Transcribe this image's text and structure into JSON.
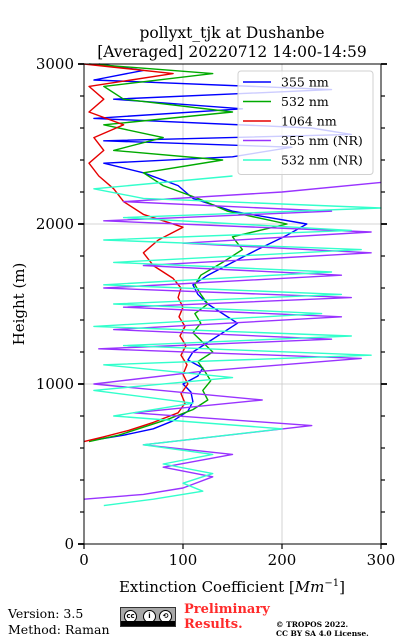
{
  "chart_data": {
    "type": "line",
    "title_line1": "pollyxt_tjk at Dushanbe",
    "title_line2": "[Averaged] 20220712 14:00-14:59",
    "xlabel": "Extinction Coefficient [",
    "xlabel_unit": "Mm",
    "xlabel_exp": "−1",
    "xlabel_close": "]",
    "ylabel": "Height (m)",
    "xlim": [
      0,
      300
    ],
    "ylim": [
      0,
      3000
    ],
    "xticks": [
      "0",
      "100",
      "200",
      "300"
    ],
    "yticks": [
      "0",
      "1000",
      "2000",
      "3000"
    ],
    "grid": true,
    "legend_position": "top-right",
    "series": [
      {
        "name": "355 nm",
        "color": "#0000ff",
        "points": [
          [
            10,
            650
          ],
          [
            40,
            680
          ],
          [
            70,
            720
          ],
          [
            90,
            770
          ],
          [
            105,
            830
          ],
          [
            110,
            890
          ],
          [
            108,
            950
          ],
          [
            100,
            1000
          ],
          [
            115,
            1050
          ],
          [
            120,
            1100
          ],
          [
            105,
            1150
          ],
          [
            110,
            1200
          ],
          [
            125,
            1260
          ],
          [
            140,
            1320
          ],
          [
            155,
            1380
          ],
          [
            140,
            1440
          ],
          [
            125,
            1500
          ],
          [
            115,
            1560
          ],
          [
            110,
            1620
          ],
          [
            125,
            1680
          ],
          [
            150,
            1760
          ],
          [
            175,
            1840
          ],
          [
            205,
            1930
          ],
          [
            225,
            2000
          ],
          [
            150,
            2080
          ],
          [
            110,
            2160
          ],
          [
            95,
            2240
          ],
          [
            60,
            2320
          ],
          [
            20,
            2380
          ],
          [
            150,
            2420
          ],
          [
            210,
            2480
          ],
          [
            20,
            2520
          ],
          [
            270,
            2560
          ],
          [
            230,
            2600
          ],
          [
            10,
            2660
          ],
          [
            160,
            2720
          ],
          [
            30,
            2780
          ],
          [
            250,
            2840
          ],
          [
            10,
            2900
          ],
          [
            60,
            2960
          ],
          [
            15,
            3000
          ]
        ]
      },
      {
        "name": "532 nm",
        "color": "#00aa00",
        "points": [
          [
            5,
            640
          ],
          [
            35,
            680
          ],
          [
            60,
            730
          ],
          [
            85,
            780
          ],
          [
            110,
            840
          ],
          [
            125,
            900
          ],
          [
            120,
            960
          ],
          [
            128,
            1020
          ],
          [
            122,
            1080
          ],
          [
            115,
            1140
          ],
          [
            130,
            1200
          ],
          [
            120,
            1260
          ],
          [
            110,
            1320
          ],
          [
            118,
            1380
          ],
          [
            112,
            1440
          ],
          [
            125,
            1500
          ],
          [
            118,
            1560
          ],
          [
            112,
            1620
          ],
          [
            118,
            1680
          ],
          [
            140,
            1760
          ],
          [
            160,
            1840
          ],
          [
            150,
            1920
          ],
          [
            205,
            2000
          ],
          [
            145,
            2080
          ],
          [
            115,
            2160
          ],
          [
            80,
            2240
          ],
          [
            60,
            2320
          ],
          [
            140,
            2400
          ],
          [
            30,
            2460
          ],
          [
            80,
            2540
          ],
          [
            20,
            2620
          ],
          [
            150,
            2700
          ],
          [
            40,
            2780
          ],
          [
            20,
            2860
          ],
          [
            130,
            2940
          ],
          [
            5,
            3000
          ]
        ]
      },
      {
        "name": "1064 nm",
        "color": "#e60000",
        "points": [
          [
            0,
            640
          ],
          [
            20,
            670
          ],
          [
            45,
            710
          ],
          [
            70,
            760
          ],
          [
            95,
            820
          ],
          [
            102,
            880
          ],
          [
            98,
            940
          ],
          [
            105,
            1000
          ],
          [
            100,
            1060
          ],
          [
            104,
            1120
          ],
          [
            98,
            1180
          ],
          [
            103,
            1240
          ],
          [
            97,
            1300
          ],
          [
            102,
            1360
          ],
          [
            96,
            1420
          ],
          [
            100,
            1480
          ],
          [
            95,
            1540
          ],
          [
            98,
            1600
          ],
          [
            90,
            1660
          ],
          [
            70,
            1740
          ],
          [
            60,
            1820
          ],
          [
            75,
            1900
          ],
          [
            100,
            1980
          ],
          [
            60,
            2060
          ],
          [
            40,
            2140
          ],
          [
            30,
            2220
          ],
          [
            15,
            2300
          ],
          [
            5,
            2380
          ],
          [
            20,
            2460
          ],
          [
            10,
            2540
          ],
          [
            40,
            2620
          ],
          [
            5,
            2700
          ],
          [
            20,
            2780
          ],
          [
            5,
            2860
          ],
          [
            90,
            2940
          ],
          [
            0,
            3000
          ]
        ]
      },
      {
        "name": "355 nm (NR)",
        "color": "#9933ff",
        "points": [
          [
            0,
            280
          ],
          [
            60,
            310
          ],
          [
            100,
            350
          ],
          [
            130,
            420
          ],
          [
            80,
            480
          ],
          [
            150,
            560
          ],
          [
            60,
            620
          ],
          [
            230,
            740
          ],
          [
            50,
            820
          ],
          [
            180,
            900
          ],
          [
            10,
            1000
          ],
          [
            120,
            1080
          ],
          [
            280,
            1160
          ],
          [
            15,
            1220
          ],
          [
            250,
            1280
          ],
          [
            30,
            1340
          ],
          [
            260,
            1420
          ],
          [
            40,
            1480
          ],
          [
            270,
            1540
          ],
          [
            20,
            1600
          ],
          [
            260,
            1680
          ],
          [
            60,
            1740
          ],
          [
            290,
            1820
          ],
          [
            100,
            1880
          ],
          [
            290,
            1950
          ],
          [
            20,
            2020
          ],
          [
            250,
            2080
          ],
          [
            40,
            2140
          ],
          [
            200,
            2200
          ],
          [
            300,
            2260
          ]
        ]
      },
      {
        "name": "532 nm (NR)",
        "color": "#33ffcc",
        "points": [
          [
            20,
            240
          ],
          [
            70,
            280
          ],
          [
            120,
            330
          ],
          [
            100,
            380
          ],
          [
            130,
            440
          ],
          [
            80,
            500
          ],
          [
            130,
            560
          ],
          [
            60,
            620
          ],
          [
            200,
            720
          ],
          [
            30,
            800
          ],
          [
            110,
            880
          ],
          [
            10,
            960
          ],
          [
            150,
            1040
          ],
          [
            20,
            1120
          ],
          [
            290,
            1180
          ],
          [
            40,
            1240
          ],
          [
            270,
            1300
          ],
          [
            10,
            1360
          ],
          [
            240,
            1440
          ],
          [
            30,
            1500
          ],
          [
            260,
            1560
          ],
          [
            20,
            1620
          ],
          [
            250,
            1700
          ],
          [
            30,
            1760
          ],
          [
            280,
            1840
          ],
          [
            20,
            1900
          ],
          [
            270,
            1960
          ],
          [
            40,
            2040
          ],
          [
            300,
            2100
          ],
          [
            60,
            2160
          ],
          [
            10,
            2220
          ],
          [
            150,
            2300
          ]
        ]
      }
    ]
  },
  "footer": {
    "version": "Version: 3.5",
    "method": "Method: Raman",
    "preliminary_line1": "Preliminary",
    "preliminary_line2": "Results.",
    "copyright1": "© TROPOS 2022.",
    "copyright2": "CC BY SA 4.0 License."
  }
}
